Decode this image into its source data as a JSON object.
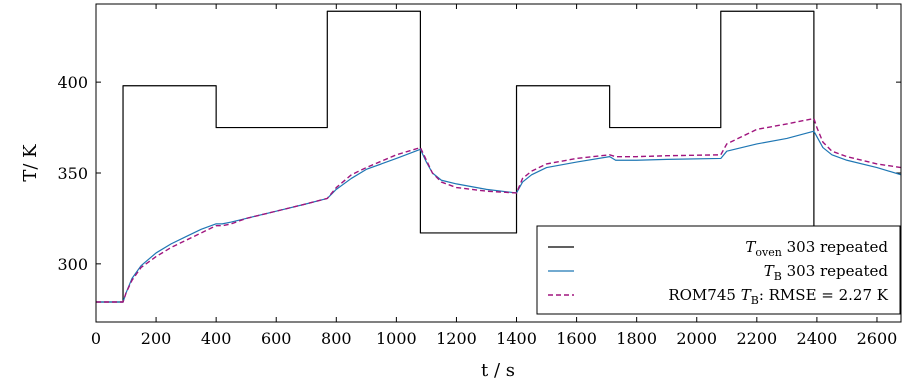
{
  "chart_data": {
    "type": "line",
    "xlabel": "t / s",
    "ylabel": "T/ K",
    "xlim": [
      0,
      2680
    ],
    "ylim": [
      268,
      443
    ],
    "x_ticks": [
      0,
      200,
      400,
      600,
      800,
      1000,
      1200,
      1400,
      1600,
      1800,
      2000,
      2200,
      2400,
      2600
    ],
    "y_ticks": [
      300,
      350,
      400
    ],
    "legend_position": "bottom-right",
    "series": [
      {
        "name": "T_oven 303 repeated",
        "label_main": "T",
        "label_sub": "oven",
        "label_rest": " 303 repeated",
        "color": "#000000",
        "style": "solid",
        "x": [
          0,
          90,
          90,
          400,
          400,
          770,
          770,
          1080,
          1080,
          1400,
          1400,
          1710,
          1710,
          2080,
          2080,
          2390,
          2390
        ],
        "y": [
          279,
          279,
          398,
          398,
          375,
          375,
          439,
          439,
          317,
          317,
          398,
          398,
          375,
          375,
          439,
          439,
          317
        ]
      },
      {
        "name": "T_B 303 repeated",
        "label_main": "T",
        "label_sub": "B",
        "label_rest": " 303 repeated",
        "color": "#1f77b4",
        "style": "solid",
        "x": [
          0,
          90,
          100,
          120,
          150,
          200,
          250,
          300,
          350,
          400,
          420,
          450,
          500,
          600,
          700,
          770,
          800,
          850,
          900,
          1000,
          1080,
          1100,
          1120,
          1150,
          1200,
          1300,
          1400,
          1420,
          1450,
          1500,
          1600,
          1710,
          1730,
          1800,
          1900,
          2080,
          2100,
          2150,
          2200,
          2300,
          2390,
          2400,
          2420,
          2450,
          2500,
          2600,
          2680
        ],
        "y": [
          279,
          279,
          284,
          292,
          299,
          306,
          311,
          315,
          319,
          322,
          322,
          323,
          325,
          329,
          333,
          336,
          341,
          347,
          352,
          358,
          363,
          356,
          350,
          346,
          344,
          341,
          339,
          345,
          349,
          353,
          356,
          359,
          357,
          357,
          357.5,
          358,
          362,
          364,
          366,
          369,
          373,
          370,
          364,
          360,
          357,
          353,
          349
        ]
      },
      {
        "name": "ROM745 T_B: RMSE = 2.27 K",
        "label_main": "ROM745 T",
        "label_sub": "B",
        "label_rest": ": RMSE = 2.27 K",
        "color": "#a0157e",
        "style": "dashed",
        "x": [
          0,
          90,
          100,
          120,
          150,
          200,
          250,
          300,
          350,
          400,
          420,
          450,
          500,
          600,
          700,
          770,
          800,
          850,
          900,
          1000,
          1080,
          1100,
          1120,
          1150,
          1200,
          1300,
          1400,
          1420,
          1450,
          1500,
          1600,
          1710,
          1730,
          1800,
          1900,
          2080,
          2100,
          2150,
          2200,
          2300,
          2390,
          2400,
          2420,
          2450,
          2500,
          2600,
          2680
        ],
        "y": [
          279,
          279,
          284,
          291,
          298,
          304,
          309,
          313,
          317,
          321,
          321,
          322,
          325,
          329,
          333,
          336,
          342,
          349,
          353,
          360,
          364,
          357,
          350,
          345,
          342,
          340,
          339,
          347,
          351,
          355,
          358,
          360,
          359,
          359,
          359.5,
          360,
          366,
          370,
          374,
          377,
          380,
          375,
          367,
          362,
          359,
          355,
          353
        ]
      }
    ]
  }
}
